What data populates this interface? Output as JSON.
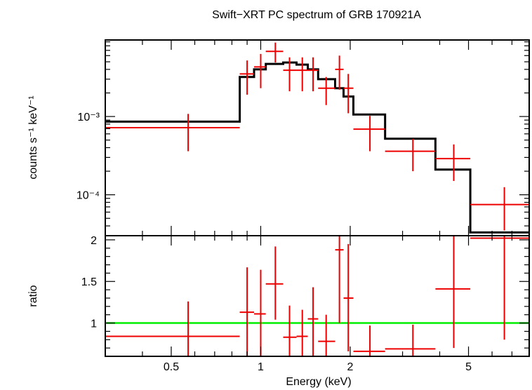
{
  "chart_data": [
    {
      "type": "line",
      "panel": "spectrum",
      "title": "Swift−XRT PC spectrum of GRB 170921A",
      "ylabel": "counts s⁻¹ keV⁻¹",
      "x_scale": "log",
      "y_scale": "log",
      "xlim": [
        0.3,
        8.0
      ],
      "ylim": [
        3e-05,
        0.0095
      ],
      "y_ticks": [
        {
          "value": 0.001,
          "label": "10⁻³"
        },
        {
          "value": 0.0001,
          "label": "10⁻⁴"
        }
      ],
      "series": [
        {
          "role": "data",
          "color": "#ee0000",
          "points": [
            {
              "xlo": 0.3,
              "xhi": 0.85,
              "x": 0.57,
              "y": 0.00072,
              "ylo": 0.00036,
              "yhi": 0.00108
            },
            {
              "xlo": 0.85,
              "xhi": 0.95,
              "x": 0.9,
              "y": 0.0035,
              "ylo": 0.0019,
              "yhi": 0.0052
            },
            {
              "xlo": 0.95,
              "xhi": 1.04,
              "x": 1.0,
              "y": 0.0043,
              "ylo": 0.0023,
              "yhi": 0.0063
            },
            {
              "xlo": 1.04,
              "xhi": 1.19,
              "x": 1.12,
              "y": 0.0068,
              "ylo": 0.0049,
              "yhi": 0.0088
            },
            {
              "xlo": 1.19,
              "xhi": 1.32,
              "x": 1.25,
              "y": 0.0039,
              "ylo": 0.0021,
              "yhi": 0.0057
            },
            {
              "xlo": 1.32,
              "xhi": 1.44,
              "x": 1.38,
              "y": 0.0039,
              "ylo": 0.0021,
              "yhi": 0.0057
            },
            {
              "xlo": 1.44,
              "xhi": 1.56,
              "x": 1.5,
              "y": 0.0039,
              "ylo": 0.0021,
              "yhi": 0.0057
            },
            {
              "xlo": 1.56,
              "xhi": 1.78,
              "x": 1.66,
              "y": 0.0023,
              "ylo": 0.0014,
              "yhi": 0.0032
            },
            {
              "xlo": 1.78,
              "xhi": 1.9,
              "x": 1.84,
              "y": 0.004,
              "ylo": 0.0022,
              "yhi": 0.006
            },
            {
              "xlo": 1.9,
              "xhi": 2.05,
              "x": 1.97,
              "y": 0.0023,
              "ylo": 0.0011,
              "yhi": 0.0035
            },
            {
              "xlo": 2.05,
              "xhi": 2.62,
              "x": 2.33,
              "y": 0.00069,
              "ylo": 0.00036,
              "yhi": 0.00102
            },
            {
              "xlo": 2.62,
              "xhi": 3.87,
              "x": 3.25,
              "y": 0.00036,
              "ylo": 0.0002,
              "yhi": 0.00052
            },
            {
              "xlo": 3.87,
              "xhi": 5.07,
              "x": 4.46,
              "y": 0.00029,
              "ylo": 0.00015,
              "yhi": 0.00044
            },
            {
              "xlo": 5.07,
              "xhi": 8.0,
              "x": 6.6,
              "y": 7.5e-05,
              "ylo": 3.5e-05,
              "yhi": 0.000125
            }
          ]
        },
        {
          "role": "model",
          "color": "#000000",
          "steps": [
            {
              "xlo": 0.3,
              "xhi": 0.85,
              "y": 0.00086
            },
            {
              "xlo": 0.85,
              "xhi": 0.95,
              "y": 0.0032
            },
            {
              "xlo": 0.95,
              "xhi": 1.04,
              "y": 0.004
            },
            {
              "xlo": 1.04,
              "xhi": 1.19,
              "y": 0.0047
            },
            {
              "xlo": 1.19,
              "xhi": 1.32,
              "y": 0.0049
            },
            {
              "xlo": 1.32,
              "xhi": 1.44,
              "y": 0.0046
            },
            {
              "xlo": 1.44,
              "xhi": 1.56,
              "y": 0.004
            },
            {
              "xlo": 1.56,
              "xhi": 1.78,
              "y": 0.003
            },
            {
              "xlo": 1.78,
              "xhi": 1.9,
              "y": 0.0023
            },
            {
              "xlo": 1.9,
              "xhi": 2.05,
              "y": 0.0018
            },
            {
              "xlo": 2.05,
              "xhi": 2.62,
              "y": 0.00106
            },
            {
              "xlo": 2.62,
              "xhi": 3.87,
              "y": 0.00052
            },
            {
              "xlo": 3.87,
              "xhi": 5.07,
              "y": 0.00021
            },
            {
              "xlo": 5.07,
              "xhi": 8.0,
              "y": 3.3e-05
            }
          ]
        }
      ]
    },
    {
      "type": "scatter",
      "panel": "ratio",
      "xlabel": "Energy (keV)",
      "ylabel": "ratio",
      "x_scale": "log",
      "xlim": [
        0.3,
        8.0
      ],
      "ylim": [
        0.6,
        2.05
      ],
      "x_ticks": [
        {
          "value": 0.5,
          "label": "0.5"
        },
        {
          "value": 1,
          "label": "1"
        },
        {
          "value": 2,
          "label": "2"
        },
        {
          "value": 5,
          "label": "5"
        }
      ],
      "y_ticks": [
        {
          "value": 1,
          "label": "1"
        },
        {
          "value": 1.5,
          "label": "1.5"
        },
        {
          "value": 2,
          "label": "2"
        }
      ],
      "reference_line": {
        "y": 1,
        "color": "#00ee00"
      },
      "series": [
        {
          "role": "ratio",
          "color": "#ee0000",
          "points": [
            {
              "xlo": 0.3,
              "xhi": 0.85,
              "x": 0.57,
              "y": 0.84,
              "ylo": 0.42,
              "yhi": 1.26
            },
            {
              "xlo": 0.85,
              "xhi": 0.95,
              "x": 0.9,
              "y": 1.13,
              "ylo": 0.6,
              "yhi": 1.67
            },
            {
              "xlo": 0.95,
              "xhi": 1.04,
              "x": 1.0,
              "y": 1.11,
              "ylo": 0.6,
              "yhi": 1.64
            },
            {
              "xlo": 1.04,
              "xhi": 1.19,
              "x": 1.12,
              "y": 1.47,
              "ylo": 1.04,
              "yhi": 1.92
            },
            {
              "xlo": 1.19,
              "xhi": 1.32,
              "x": 1.25,
              "y": 0.83,
              "ylo": 0.44,
              "yhi": 1.21
            },
            {
              "xlo": 1.32,
              "xhi": 1.44,
              "x": 1.38,
              "y": 0.84,
              "ylo": 0.44,
              "yhi": 1.16
            },
            {
              "xlo": 1.44,
              "xhi": 1.56,
              "x": 1.5,
              "y": 1.05,
              "ylo": 0.6,
              "yhi": 1.43
            },
            {
              "xlo": 1.56,
              "xhi": 1.78,
              "x": 1.66,
              "y": 0.78,
              "ylo": 0.46,
              "yhi": 1.1
            },
            {
              "xlo": 1.78,
              "xhi": 1.9,
              "x": 1.84,
              "y": 1.88,
              "ylo": 1.0,
              "yhi": 2.05
            },
            {
              "xlo": 1.9,
              "xhi": 2.05,
              "x": 1.97,
              "y": 1.3,
              "ylo": 0.66,
              "yhi": 1.95
            },
            {
              "xlo": 2.05,
              "xhi": 2.62,
              "x": 2.33,
              "y": 0.66,
              "ylo": 0.6,
              "yhi": 0.97
            },
            {
              "xlo": 2.62,
              "xhi": 3.87,
              "x": 3.25,
              "y": 0.69,
              "ylo": 0.6,
              "yhi": 0.98
            },
            {
              "xlo": 3.87,
              "xhi": 5.07,
              "x": 4.46,
              "y": 1.41,
              "ylo": 0.7,
              "yhi": 2.05
            },
            {
              "xlo": 5.07,
              "xhi": 8.0,
              "x": 6.6,
              "y": 2.02,
              "ylo": 0.8,
              "yhi": 2.05
            }
          ]
        }
      ]
    }
  ]
}
